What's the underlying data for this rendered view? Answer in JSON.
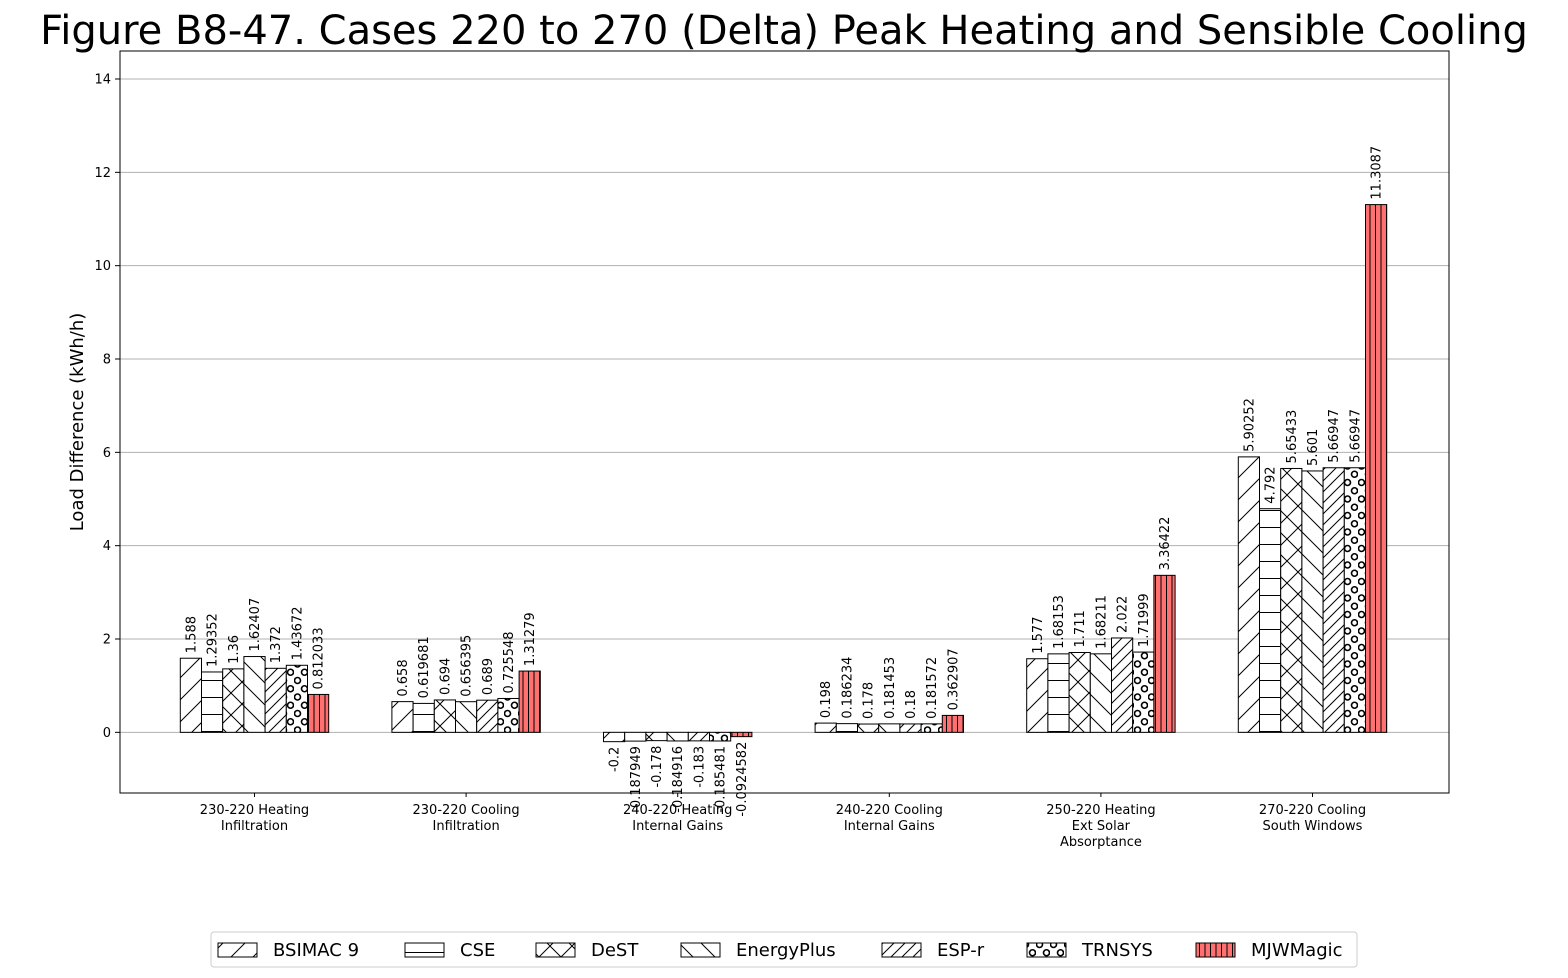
{
  "chart_data": {
    "type": "bar",
    "title": "Figure B8-47. Cases 220 to 270 (Delta) Peak Heating and Sensible Cooling",
    "ylabel": "Load Difference (kWh/h)",
    "xlabel": "",
    "ylim": [
      -1.3,
      14.6
    ],
    "yticks": [
      0,
      2,
      4,
      6,
      8,
      10,
      12,
      14
    ],
    "grid": "y",
    "legend_position": "bottom",
    "categories": [
      [
        "230-220 Heating",
        "Infiltration"
      ],
      [
        "230-220 Cooling",
        "Infiltration"
      ],
      [
        "240-220 Heating",
        "Internal Gains"
      ],
      [
        "240-220 Cooling",
        "Internal Gains"
      ],
      [
        "250-220 Heating",
        "Ext Solar",
        "Absorptance"
      ],
      [
        "270-220 Cooling",
        "South Windows"
      ]
    ],
    "series": [
      {
        "name": "BSIMAC 9",
        "pattern": "diag-fwd",
        "color": "#ffffff",
        "values": [
          1.588,
          0.658,
          -0.2,
          0.198,
          1.577,
          5.90252
        ],
        "labels": [
          "1.588",
          "0.658",
          "-0.2",
          "0.198",
          "1.577",
          "5.90252"
        ]
      },
      {
        "name": "CSE",
        "pattern": "horizontal",
        "color": "#ffffff",
        "values": [
          1.29352,
          0.619681,
          -0.187949,
          0.186234,
          1.68153,
          4.792
        ],
        "labels": [
          "1.29352",
          "0.619681",
          "-0.187949",
          "0.186234",
          "1.68153",
          "4.792"
        ]
      },
      {
        "name": "DeST",
        "pattern": "cross",
        "color": "#ffffff",
        "values": [
          1.36,
          0.694,
          -0.178,
          0.178,
          1.711,
          5.65433
        ],
        "labels": [
          "1.36",
          "0.694",
          "-0.178",
          "0.178",
          "1.711",
          "5.65433"
        ]
      },
      {
        "name": "EnergyPlus",
        "pattern": "diag-back",
        "color": "#ffffff",
        "values": [
          1.62407,
          0.656395,
          -0.184916,
          0.181453,
          1.68211,
          5.601
        ],
        "labels": [
          "1.62407",
          "0.656395",
          "-0.184916",
          "0.181453",
          "1.68211",
          "5.601"
        ]
      },
      {
        "name": "ESP-r",
        "pattern": "diag-fwd-dense",
        "color": "#ffffff",
        "values": [
          1.372,
          0.689,
          -0.183,
          0.18,
          2.022,
          5.66947
        ],
        "labels": [
          "1.372",
          "0.689",
          "-0.183",
          "0.18",
          "2.022",
          "5.66947"
        ]
      },
      {
        "name": "TRNSYS",
        "pattern": "circles",
        "color": "#ffffff",
        "values": [
          1.43672,
          0.725548,
          -0.185481,
          0.181572,
          1.71999,
          5.66947
        ],
        "labels": [
          "1.43672",
          "0.725548",
          "-0.185481",
          "0.181572",
          "1.71999",
          "5.66947"
        ]
      },
      {
        "name": "MJWMagic",
        "pattern": "vertical",
        "color": "#ff7070",
        "values": [
          0.812033,
          1.31279,
          -0.0924582,
          0.362907,
          3.36422,
          11.3087
        ],
        "labels": [
          "0.812033",
          "1.31279",
          "-0.0924582",
          "0.362907",
          "3.36422",
          "11.3087"
        ]
      }
    ]
  }
}
